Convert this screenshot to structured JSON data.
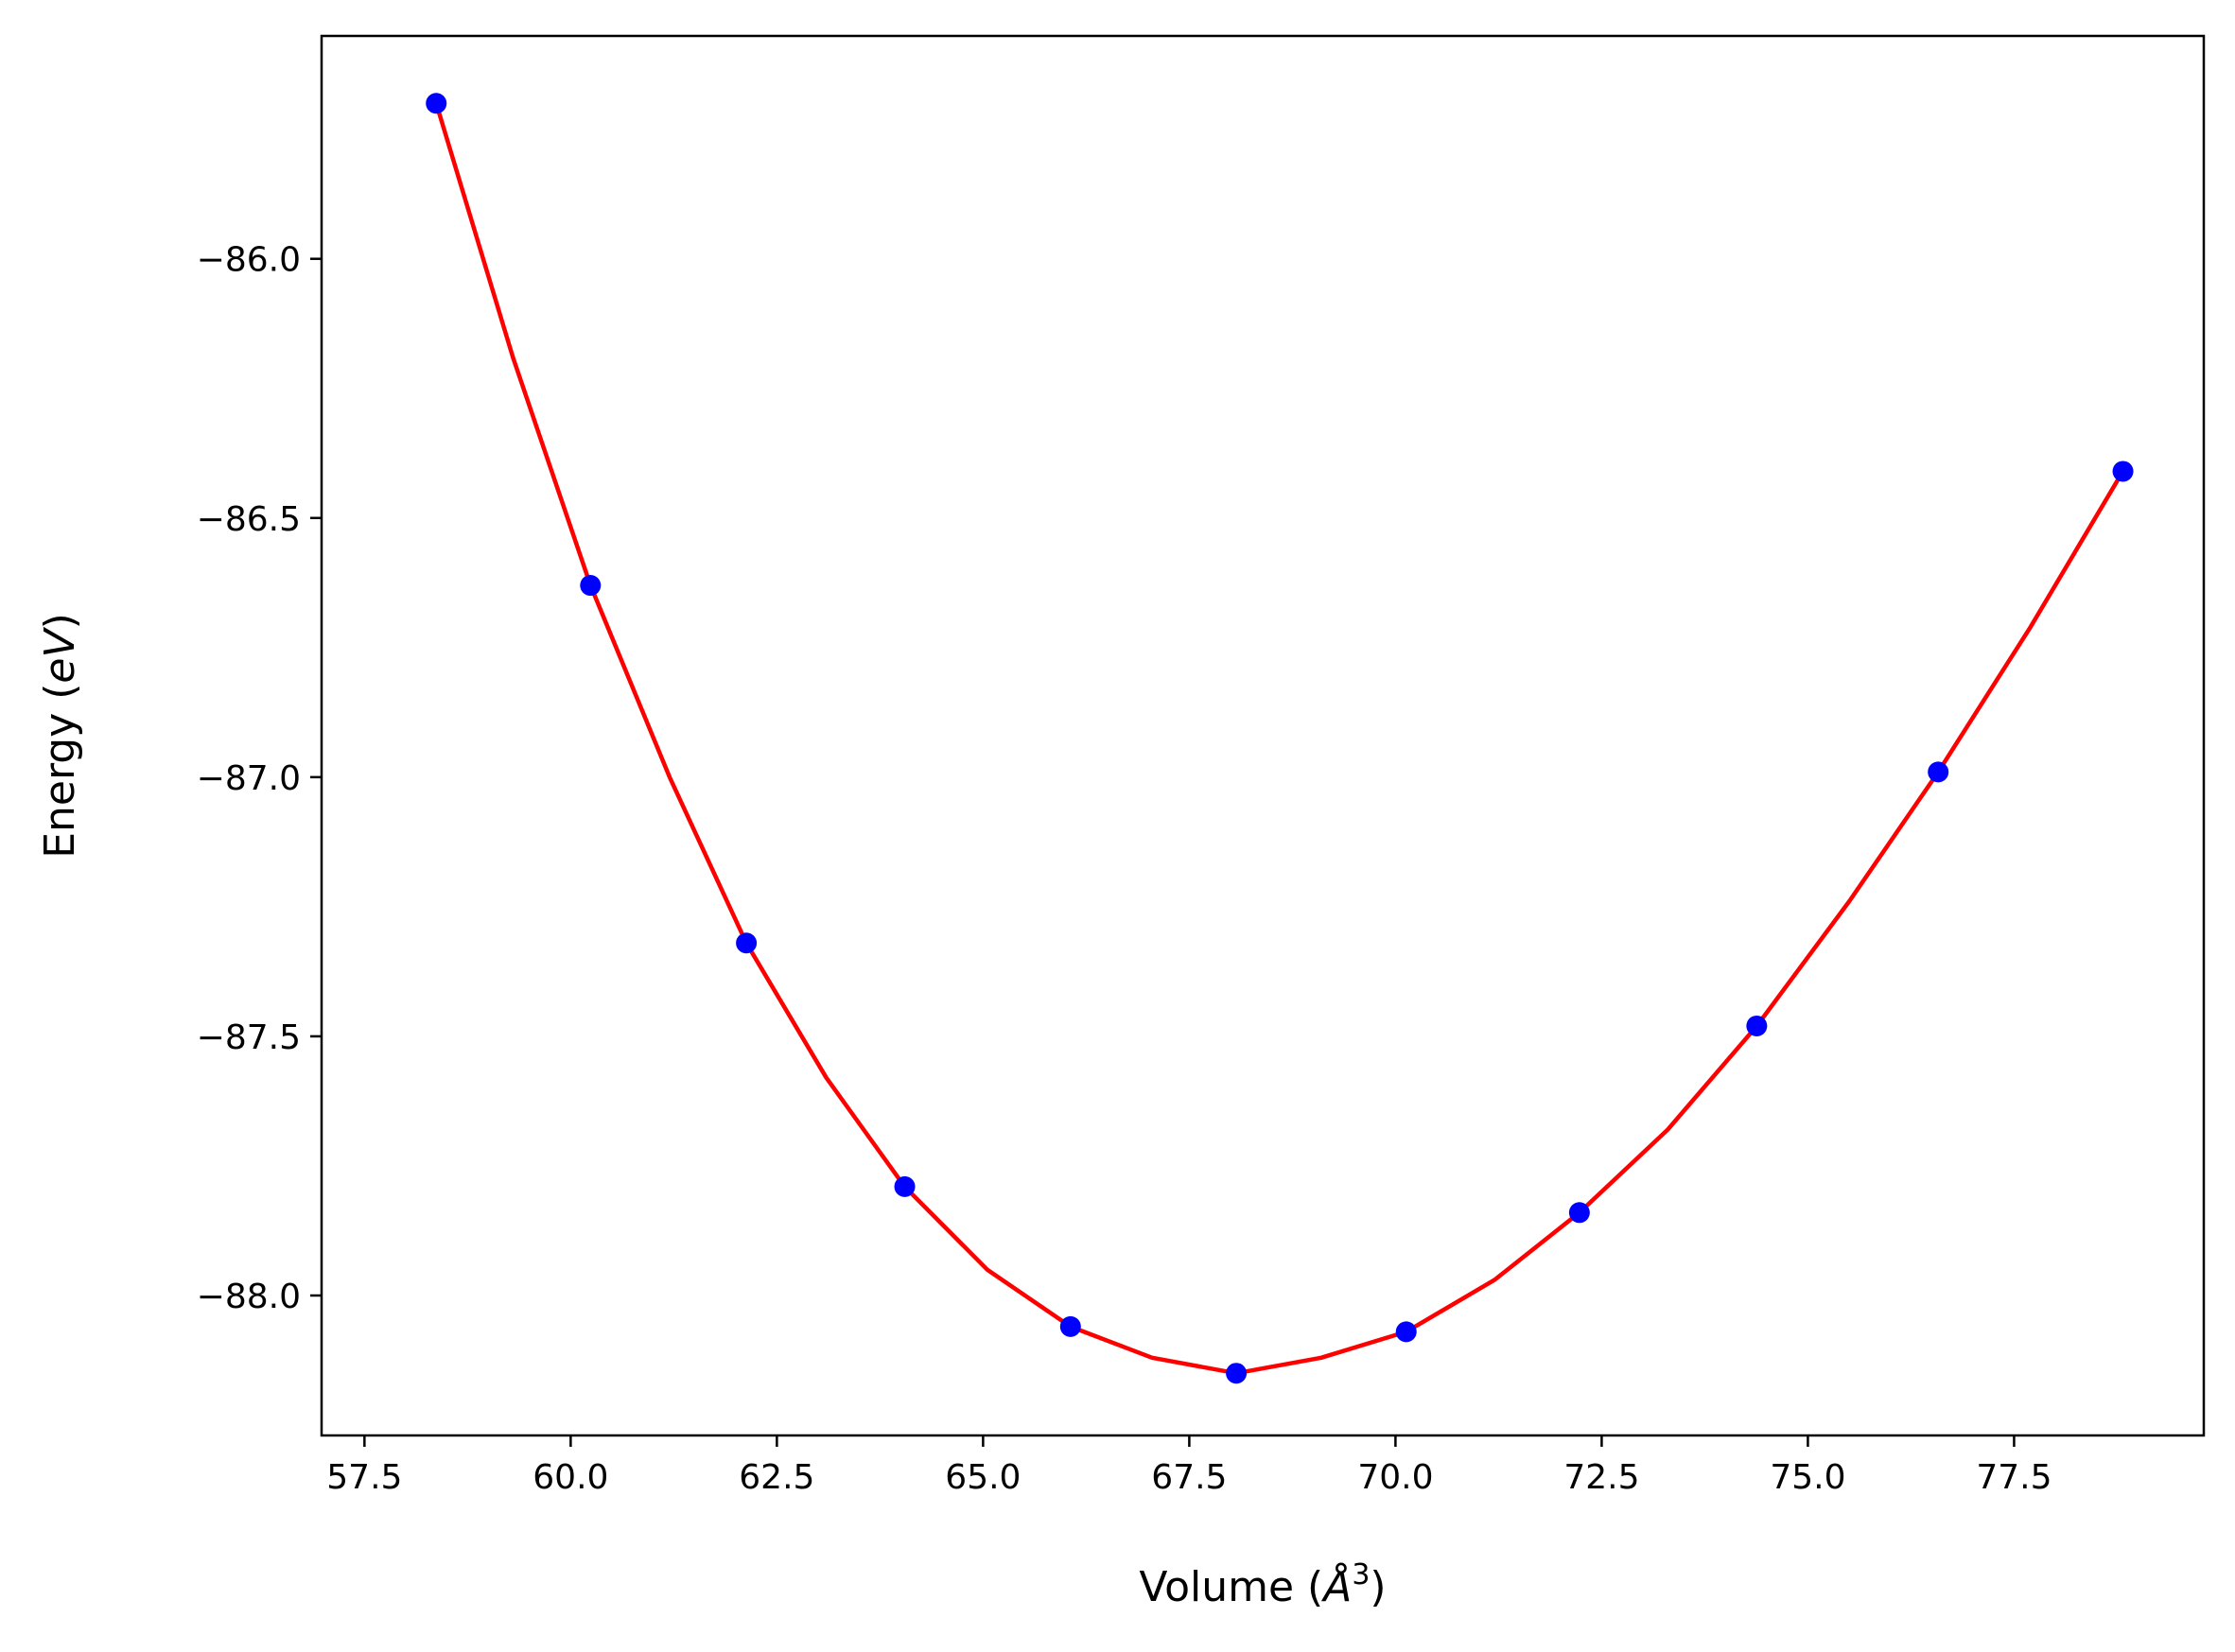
{
  "chart_data": {
    "type": "scatter",
    "title": "",
    "xlabel": "Volume",
    "ylabel": "Energy",
    "xlabel_unit_symbol": "Å",
    "xlabel_unit_power": "3",
    "ylabel_unit": "eV",
    "xlim": [
      56.98,
      79.8
    ],
    "ylim": [
      -88.27,
      -85.57
    ],
    "x_ticks": [
      57.5,
      60.0,
      62.5,
      65.0,
      67.5,
      70.0,
      72.5,
      75.0,
      77.5
    ],
    "x_tick_labels": [
      "57.5",
      "60.0",
      "62.5",
      "65.0",
      "67.5",
      "70.0",
      "72.5",
      "75.0",
      "77.5"
    ],
    "y_ticks": [
      -86.0,
      -86.5,
      -87.0,
      -87.5,
      -88.0
    ],
    "y_tick_labels": [
      "−86.0",
      "−86.5",
      "−87.0",
      "−87.5",
      "−88.0"
    ],
    "grid": false,
    "legend": "none",
    "series": [
      {
        "kind": "scatter",
        "color": "#0000ff",
        "marker": "circle",
        "x": [
          58.37,
          60.24,
          62.13,
          64.05,
          66.06,
          68.07,
          70.13,
          72.23,
          74.38,
          76.58,
          78.82
        ],
        "y": [
          -85.7,
          -86.63,
          -87.32,
          -87.79,
          -88.06,
          -88.15,
          -88.07,
          -87.84,
          -87.48,
          -86.99,
          -86.41
        ]
      },
      {
        "kind": "fit-line",
        "color": "#ff0000",
        "x": [
          58.37,
          59.3,
          60.24,
          61.2,
          62.13,
          63.1,
          64.05,
          65.05,
          66.06,
          67.05,
          68.07,
          69.1,
          70.13,
          71.2,
          72.23,
          73.3,
          74.38,
          75.5,
          76.58,
          77.7,
          78.82
        ],
        "y": [
          -85.7,
          -86.19,
          -86.63,
          -87.0,
          -87.32,
          -87.58,
          -87.79,
          -87.95,
          -88.06,
          -88.12,
          -88.15,
          -88.12,
          -88.07,
          -87.97,
          -87.84,
          -87.68,
          -87.48,
          -87.24,
          -86.99,
          -86.71,
          -86.41
        ]
      }
    ]
  }
}
